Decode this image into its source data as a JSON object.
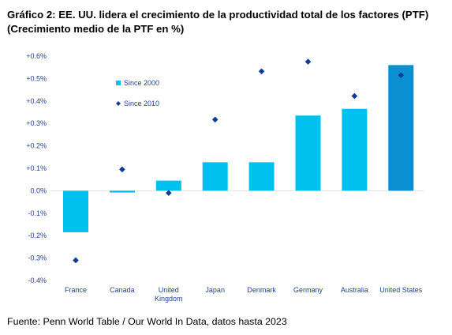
{
  "title": "Gráfico 2: EE. UU. lidera el crecimiento de la productividad total de los factores (PTF)",
  "subtitle": "(Crecimiento medio de la PTF en %)",
  "source": "Fuente: Penn World Table / Our World In Data, datos hasta 2023",
  "colors": {
    "bar": "#00c0ef",
    "bar_highlight": "#0b8fd3",
    "diamond": "#0d3d96",
    "axis_text": "#1f3f8f"
  },
  "chart_data": {
    "type": "bar",
    "categories": [
      "France",
      "Canada",
      "United Kingdom",
      "Japan",
      "Denmark",
      "Germany",
      "Australia",
      "United States"
    ],
    "category_lines": [
      [
        "France"
      ],
      [
        "Canada"
      ],
      [
        "United",
        "Kingdom"
      ],
      [
        "Japan"
      ],
      [
        "Denmark"
      ],
      [
        "Germany"
      ],
      [
        "Australia"
      ],
      [
        "United States"
      ]
    ],
    "series": [
      {
        "name": "Since 2000",
        "type": "bar",
        "values": [
          -0.185,
          -0.008,
          0.045,
          0.127,
          0.127,
          0.335,
          0.365,
          0.56
        ]
      },
      {
        "name": "Since 2010",
        "type": "scatter",
        "marker": "diamond",
        "values": [
          -0.31,
          0.095,
          -0.01,
          0.317,
          0.532,
          0.575,
          0.422,
          0.515
        ]
      }
    ],
    "ylim": [
      -0.4,
      0.6
    ],
    "yticks": [
      0.6,
      0.5,
      0.4,
      0.3,
      0.2,
      0.1,
      0.0,
      -0.1,
      -0.2,
      -0.3,
      -0.4
    ],
    "ytick_labels": [
      "+0.6%",
      "+0.5%",
      "+0.4%",
      "+0.3%",
      "+0.2%",
      "+0.1%",
      "0.0%",
      "-0.1%",
      "-0.2%",
      "-0.3%",
      "-0.4%"
    ],
    "highlight_category": "United States",
    "grid": false,
    "legend_position": "upper-left"
  }
}
